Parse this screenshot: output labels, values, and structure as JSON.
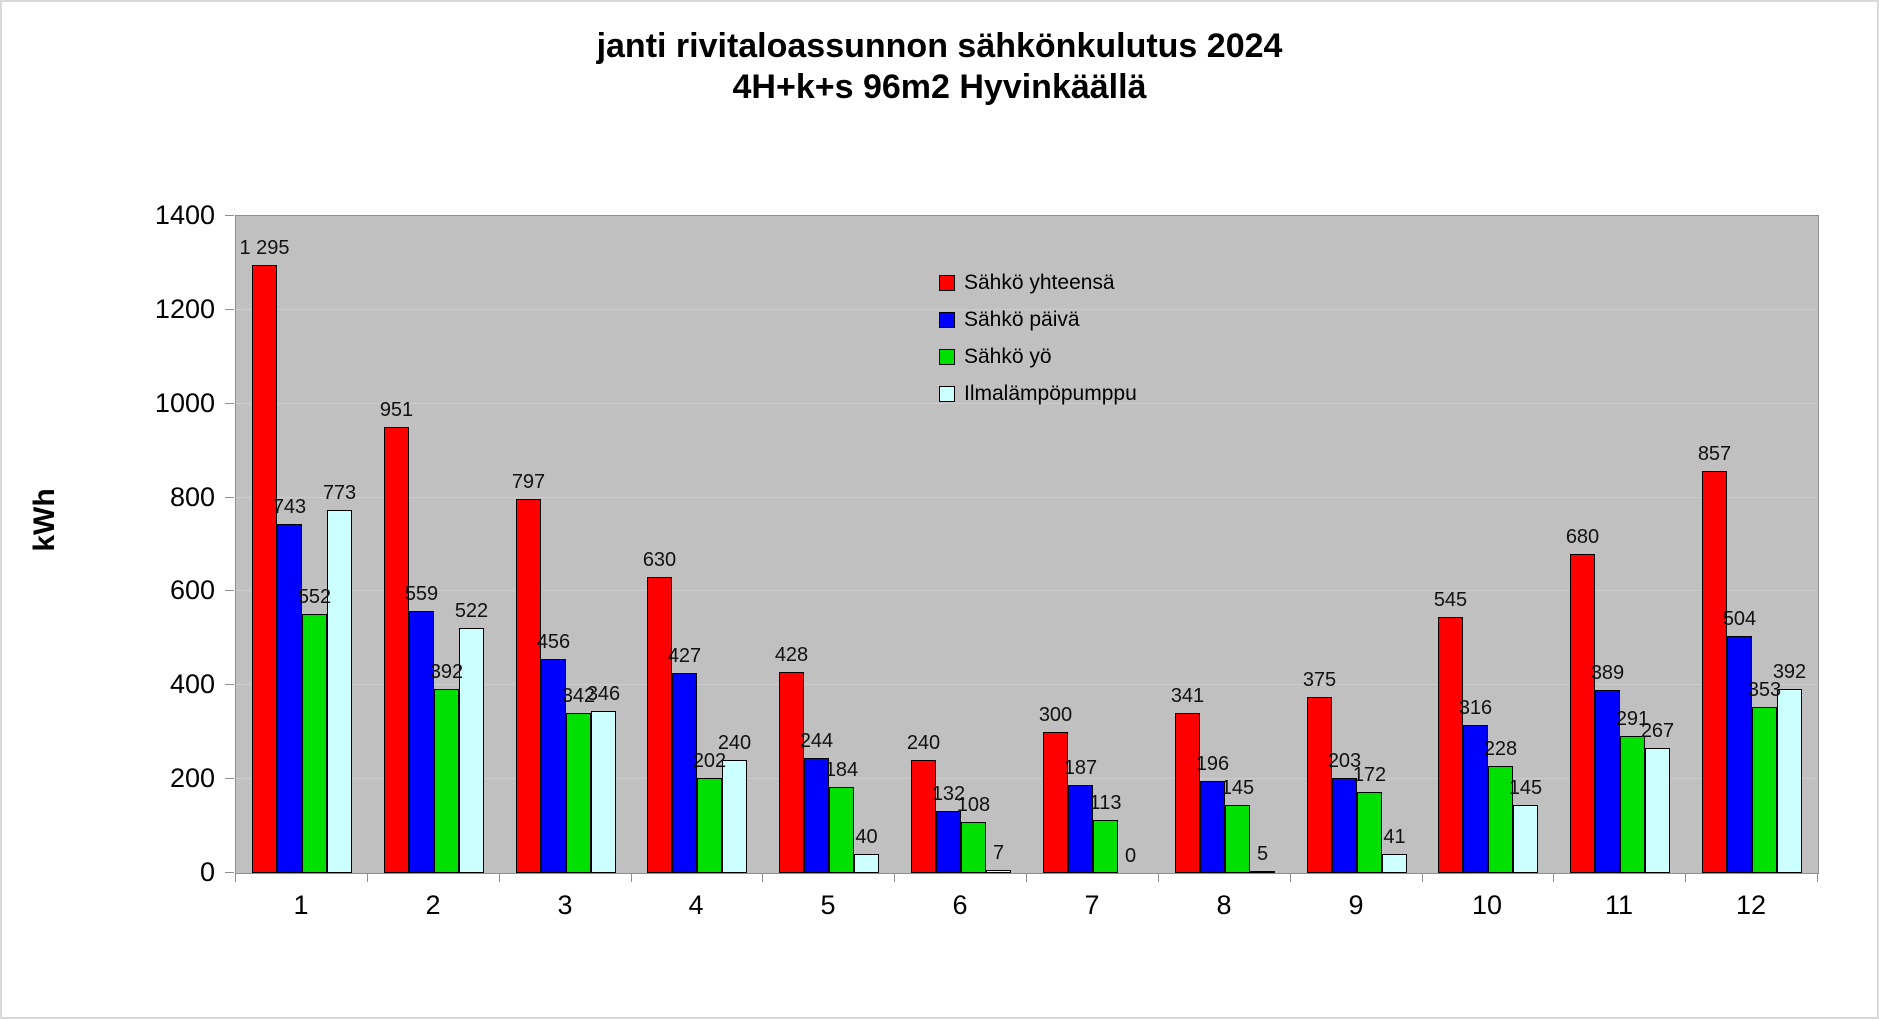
{
  "title": {
    "line1": "janti rivitaloassunnon sähkönkulutus 2024",
    "line2": "4H+k+s 96m2 Hyvinkäällä"
  },
  "chart_data": {
    "type": "bar",
    "title": "janti rivitaloassunnon sähkönkulutus 2024 4H+k+s 96m2 Hyvinkäällä",
    "ylabel": "kWh",
    "xlabel": "",
    "ylim": [
      0,
      1400
    ],
    "y_tick_step": 200,
    "y_ticks": [
      "0",
      "200",
      "400",
      "600",
      "800",
      "1000",
      "1200",
      "1400"
    ],
    "grid": true,
    "plot_background": "#c0c0c0",
    "gridline_color": "#cdcdcd",
    "legend_position": "inside-top-middle",
    "categories": [
      "1",
      "2",
      "3",
      "4",
      "5",
      "6",
      "7",
      "8",
      "9",
      "10",
      "11",
      "12"
    ],
    "series": [
      {
        "name": "Sähkö yhteensä",
        "color": "#ff0000",
        "values": [
          1295,
          951,
          797,
          630,
          428,
          240,
          300,
          341,
          375,
          545,
          680,
          857
        ]
      },
      {
        "name": "Sähkö päivä",
        "color": "#0000ff",
        "values": [
          743,
          559,
          456,
          427,
          244,
          132,
          187,
          196,
          203,
          316,
          389,
          504
        ]
      },
      {
        "name": "Sähkö yö",
        "color": "#00e000",
        "values": [
          552,
          392,
          342,
          202,
          184,
          108,
          113,
          145,
          172,
          228,
          291,
          353
        ]
      },
      {
        "name": "Ilmalämpöpumppu",
        "color": "#ccffff",
        "values": [
          773,
          522,
          346,
          240,
          40,
          7,
          0,
          5,
          41,
          145,
          267,
          392
        ]
      }
    ],
    "value_label_thousands_separator": " "
  }
}
